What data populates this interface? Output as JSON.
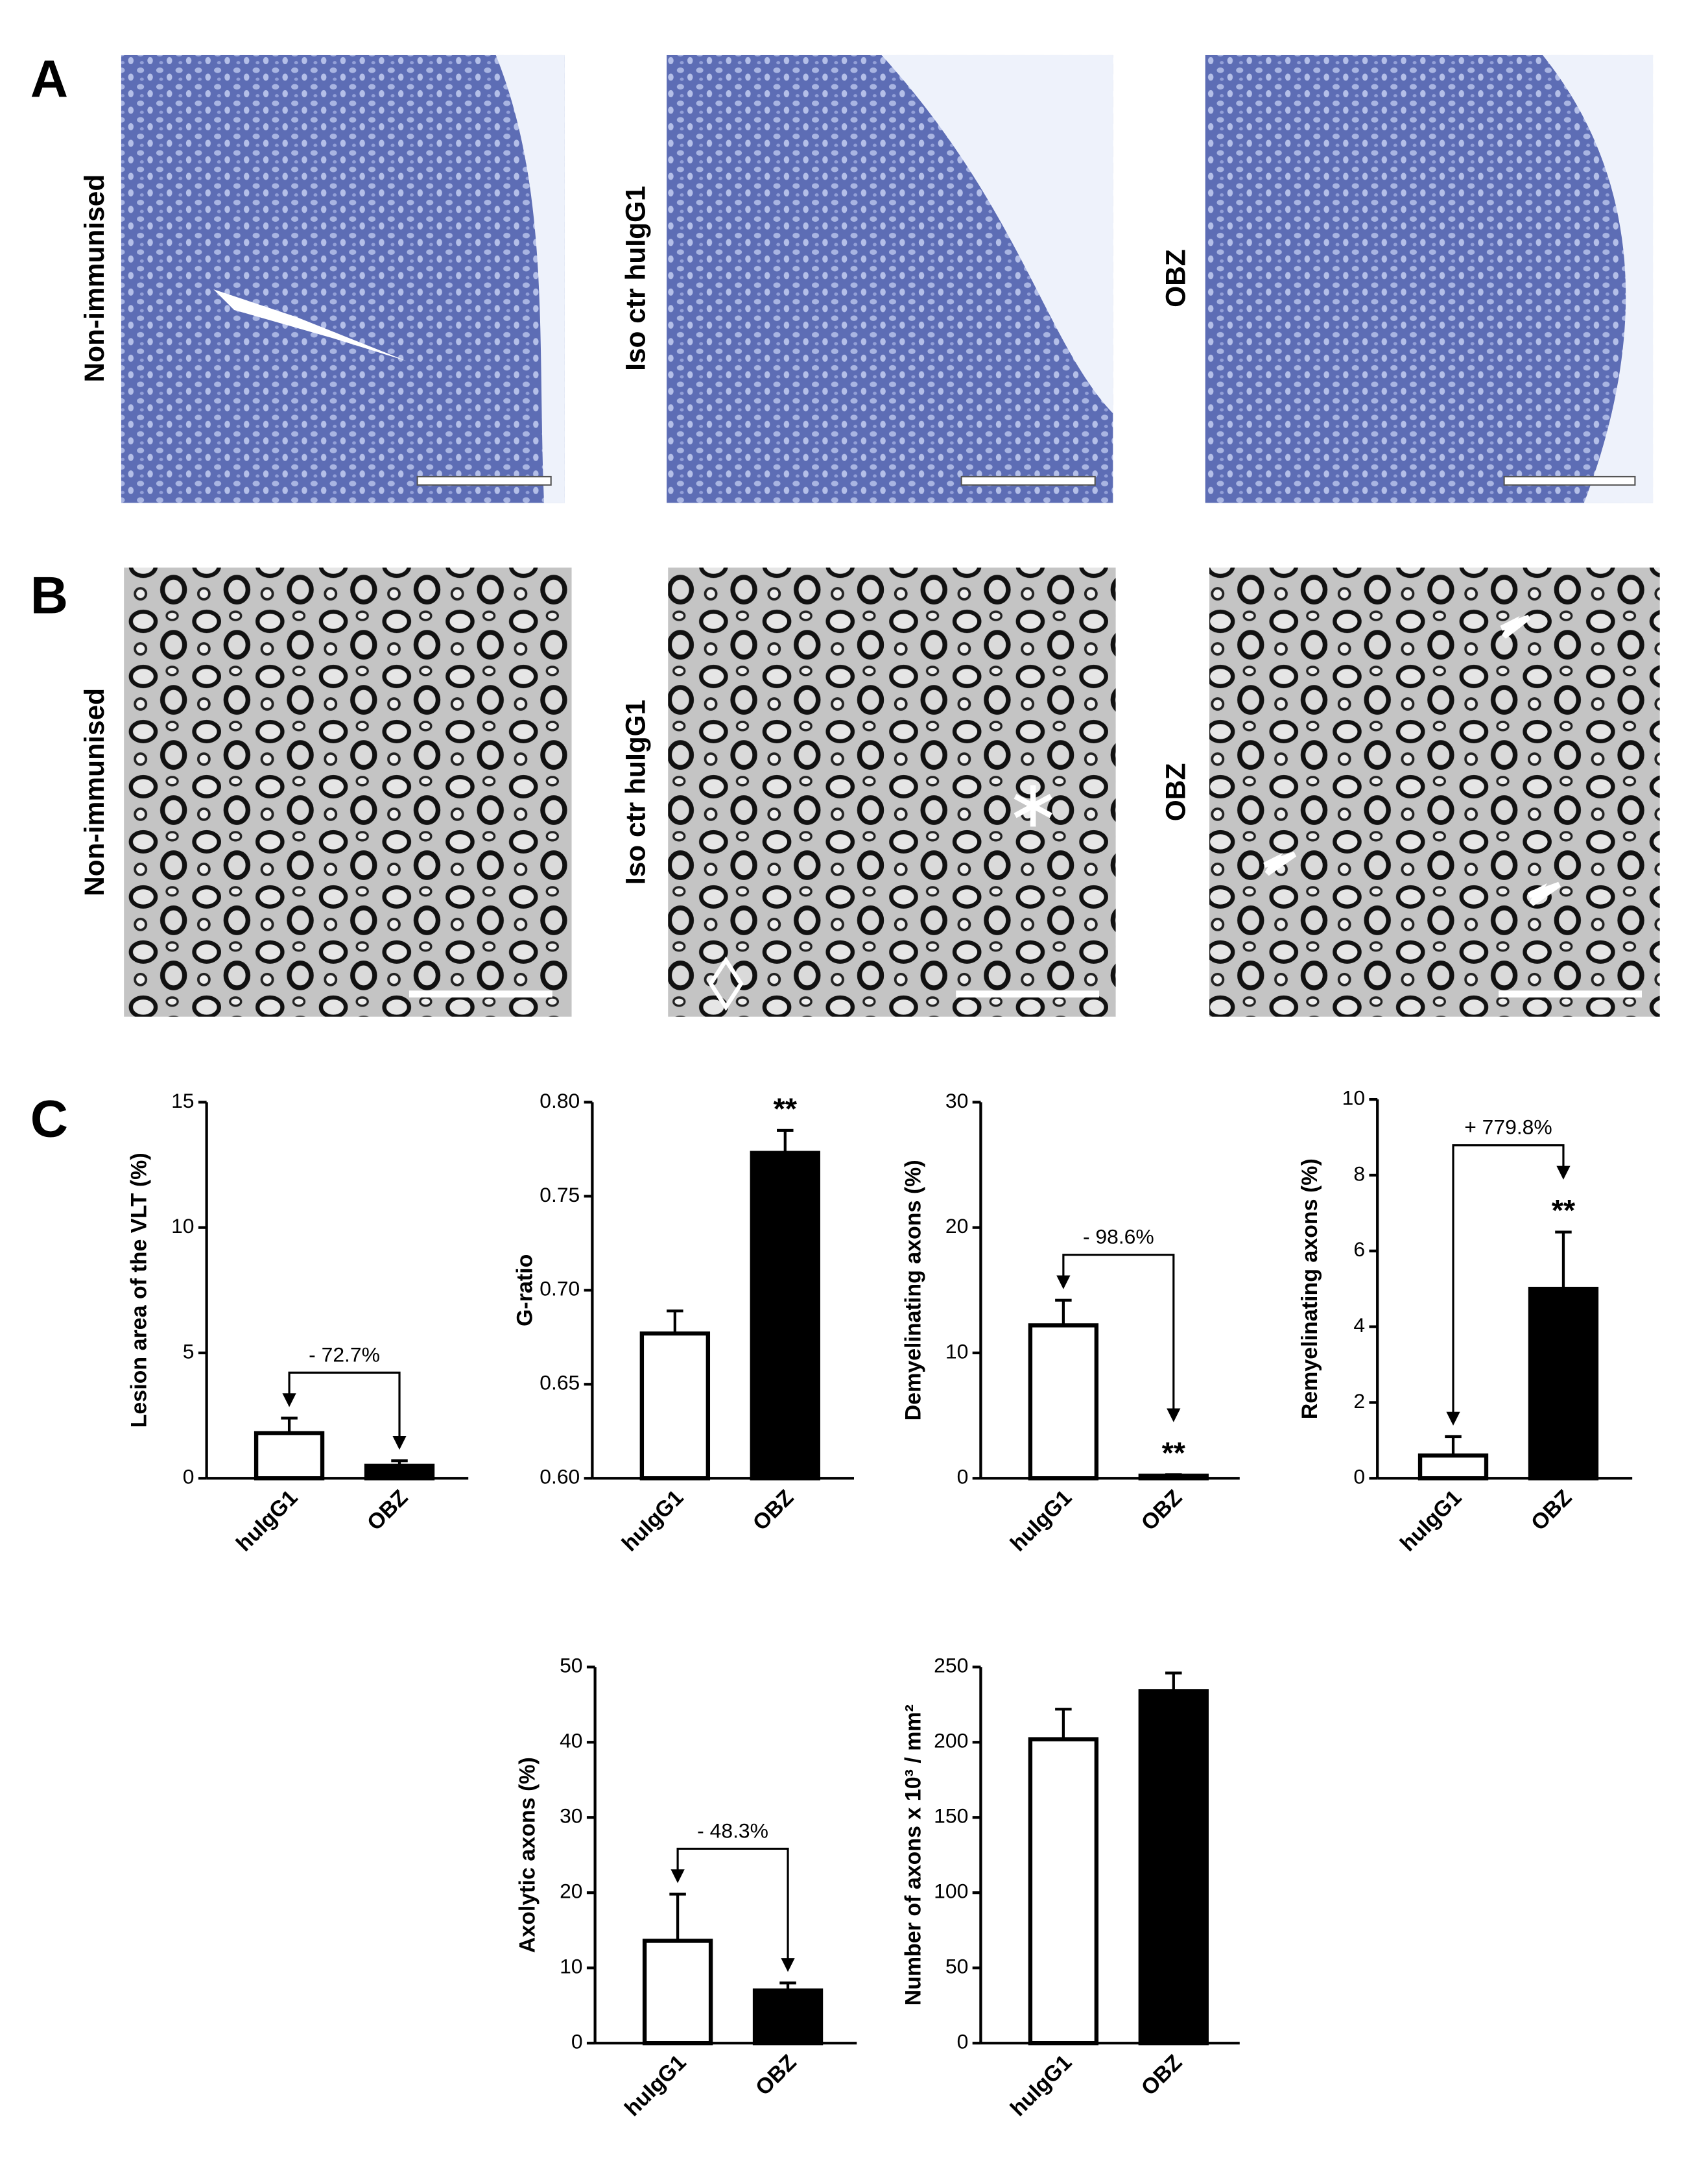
{
  "panels": [
    {
      "label": "A",
      "images": [
        "Non-immunised",
        "Iso ctr huIgG1",
        "OBZ"
      ]
    },
    {
      "label": "B",
      "images": [
        "Non-immunised",
        "Iso ctr huIgG1",
        "OBZ"
      ]
    },
    {
      "label": "C"
    }
  ],
  "chart_data": [
    {
      "type": "bar",
      "y_label": "Lesion area of the VLT (%)",
      "categories": [
        "huIgG1",
        "OBZ"
      ],
      "values": [
        1.8,
        0.5
      ],
      "errors": [
        0.6,
        0.2
      ],
      "colors": [
        "#ffffff",
        "#000000"
      ],
      "ylim": [
        0,
        15
      ],
      "yticks": [
        0,
        5,
        10,
        15
      ],
      "annotation": "- 72.7%"
    },
    {
      "type": "bar",
      "y_label": "G-ratio",
      "categories": [
        "huIgG1",
        "OBZ"
      ],
      "values": [
        0.677,
        0.773
      ],
      "errors": [
        0.012,
        0.012
      ],
      "colors": [
        "#ffffff",
        "#000000"
      ],
      "ylim": [
        0.6,
        0.8
      ],
      "yticks": [
        {
          "value": 0.6,
          "label": "0.60"
        },
        0.65,
        {
          "value": 0.7,
          "label": "0.70"
        },
        0.75,
        {
          "value": 0.8,
          "label": "0.80"
        }
      ],
      "significance_labels": [
        null,
        "**"
      ]
    },
    {
      "type": "bar",
      "y_label": "Demyelinating axons (%)",
      "categories": [
        "huIgG1",
        "OBZ"
      ],
      "values": [
        12.2,
        0.2
      ],
      "errors": [
        2.0,
        0.1
      ],
      "colors": [
        "#ffffff",
        "#000000"
      ],
      "ylim": [
        0,
        30
      ],
      "yticks": [
        0,
        10,
        20,
        30
      ],
      "annotation": "- 98.6%",
      "significance_labels": [
        null,
        "**"
      ]
    },
    {
      "type": "bar",
      "y_label": "Remyelinating axons (%)",
      "categories": [
        "huIgG1",
        "OBZ"
      ],
      "values": [
        0.6,
        5.0
      ],
      "errors": [
        0.5,
        1.5
      ],
      "colors": [
        "#ffffff",
        "#000000"
      ],
      "ylim": [
        0,
        10
      ],
      "yticks": [
        0,
        2,
        4,
        6,
        8,
        10
      ],
      "annotation": "+ 779.8%",
      "significance_labels": [
        null,
        "**"
      ]
    },
    {
      "type": "bar",
      "y_label": "Axolytic axons (%)",
      "categories": [
        "huIgG1",
        "OBZ"
      ],
      "values": [
        13.6,
        7.0
      ],
      "errors": [
        6.2,
        1.0
      ],
      "colors": [
        "#ffffff",
        "#000000"
      ],
      "ylim": [
        0,
        50
      ],
      "yticks": [
        0,
        10,
        20,
        30,
        40,
        50
      ],
      "annotation": "- 48.3%"
    },
    {
      "type": "bar",
      "y_label": "Number of axons x 10³ / mm²",
      "categories": [
        "huIgG1",
        "OBZ"
      ],
      "values": [
        202,
        234
      ],
      "errors": [
        20,
        12
      ],
      "colors": [
        "#ffffff",
        "#000000"
      ],
      "ylim": [
        0,
        250
      ],
      "yticks": [
        0,
        50,
        100,
        150,
        200,
        250
      ]
    }
  ]
}
